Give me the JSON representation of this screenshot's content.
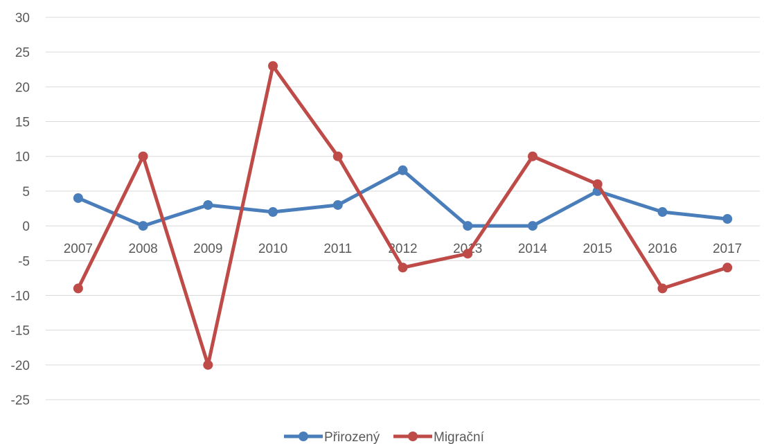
{
  "chart_data": {
    "type": "line",
    "categories": [
      "2007",
      "2008",
      "2009",
      "2010",
      "2011",
      "2012",
      "2013",
      "2014",
      "2015",
      "2016",
      "2017"
    ],
    "series": [
      {
        "name": "Přirozený",
        "values": [
          4,
          0,
          3,
          2,
          3,
          8,
          0,
          0,
          5,
          2,
          1
        ],
        "color": "#4a7ebb"
      },
      {
        "name": "Migrační",
        "values": [
          -9,
          10,
          -20,
          23,
          10,
          -6,
          -4,
          10,
          6,
          -9,
          -6
        ],
        "color": "#be4b48"
      }
    ],
    "yticks": [
      "30",
      "25",
      "20",
      "15",
      "10",
      "5",
      "0",
      "-5",
      "-10",
      "-15",
      "-20",
      "-25"
    ],
    "ylim": [
      -25,
      30
    ],
    "grid": true,
    "legend": "bottom",
    "title": "",
    "xlabel": "",
    "ylabel": ""
  }
}
